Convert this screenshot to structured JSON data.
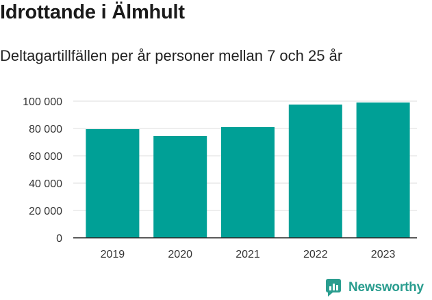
{
  "title": "Idrottande i Älmhult",
  "subtitle": "Deltagartillfällen per år personer mellan 7 och 25 år",
  "brand": {
    "name": "Newsworthy",
    "color": "#2a9d8f"
  },
  "colors": {
    "bar": "#00a096",
    "grid": "#dddddd",
    "axis": "#222222"
  },
  "chart_data": {
    "type": "bar",
    "title": "Idrottande i Älmhult",
    "subtitle": "Deltagartillfällen per år personer mellan 7 och 25 år",
    "categories": [
      "2019",
      "2020",
      "2021",
      "2022",
      "2023"
    ],
    "values": [
      79500,
      74500,
      81000,
      97500,
      99000
    ],
    "ylim": [
      0,
      100000
    ],
    "yticks": [
      0,
      20000,
      40000,
      60000,
      80000,
      100000
    ],
    "ytick_labels": [
      "0",
      "20 000",
      "40 000",
      "60 000",
      "80 000",
      "100 000"
    ],
    "xlabel": "",
    "ylabel": "",
    "grid": true
  }
}
